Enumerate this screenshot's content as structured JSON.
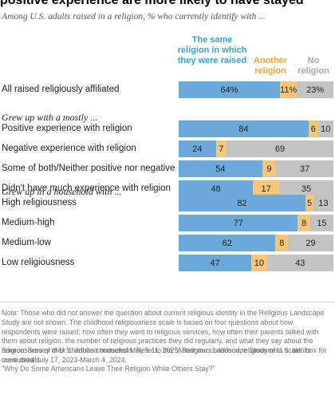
{
  "title": "positive experience are more likely to have stayed",
  "subtitle": "Among U.S. adults raised in a religion, % who currently identify with ...",
  "legend": {
    "same": "The same religion in which they were raised",
    "other": "Another religion",
    "none": "No religion"
  },
  "colors": {
    "same": "#6aa9d8",
    "other": "#f8c57a",
    "none": "#c3c3c3"
  },
  "chart_data": {
    "type": "bar",
    "stacked": true,
    "orientation": "horizontal",
    "xlim": [
      0,
      100
    ],
    "series": [
      {
        "name": "The same religion in which they were raised"
      },
      {
        "name": "Another religion"
      },
      {
        "name": "No religion"
      }
    ],
    "groups": [
      {
        "label": "",
        "rows": [
          {
            "label": "All raised religiously affiliated",
            "values": [
              64,
              11,
              23
            ],
            "display": [
              "64%",
              "11%",
              "23%"
            ]
          }
        ]
      },
      {
        "label": "Grew up with a mostly ...",
        "rows": [
          {
            "label": "Positive experience with religion",
            "values": [
              84,
              6,
              10
            ],
            "display": [
              "84",
              "6",
              "10"
            ]
          },
          {
            "label": "Negative experience with religion",
            "values": [
              24,
              7,
              69
            ],
            "display": [
              "24",
              "7",
              "69"
            ]
          },
          {
            "label": "Some of both/Neither positive nor negative",
            "values": [
              54,
              9,
              37
            ],
            "display": [
              "54",
              "9",
              "37"
            ]
          },
          {
            "label": "Didn't have much experience with religion",
            "values": [
              48,
              17,
              35
            ],
            "display": [
              "48",
              "17",
              "35"
            ]
          }
        ]
      },
      {
        "label": "Grew up in a household with ...",
        "rows": [
          {
            "label": "High religiousness",
            "values": [
              82,
              5,
              13
            ],
            "display": [
              "82",
              "5",
              "13"
            ]
          },
          {
            "label": "Medium-high",
            "values": [
              77,
              8,
              15
            ],
            "display": [
              "77",
              "8",
              "15"
            ]
          },
          {
            "label": "Medium-low",
            "values": [
              62,
              8,
              29
            ],
            "display": [
              "62",
              "8",
              "29"
            ]
          },
          {
            "label": "Low religiousness",
            "values": [
              47,
              10,
              43
            ],
            "display": [
              "47",
              "10",
              "43"
            ]
          }
        ]
      }
    ]
  },
  "notes": [
    "Note: Those who did not answer the question about current religious identity in the Religious Landscape Study are not shown. The childhood religiousness scale is based on four questions about how respondents were raised: how often they went to religious services, how often their parents talked with them about religion, the number of religious practices they did regularly, and what they say about the religiousness of their childhood household. Refer to the \"About our childhood religiousness scale\" box for more details.",
    "Source: Survey of U.S. adults conducted May 5-11, 2025; Religious Landscape Study of U.S. adults conducted July 17, 2023-March 4, 2024.",
    "\"Why Do Some Americans Leave Their Religion While Others Stay?\""
  ]
}
